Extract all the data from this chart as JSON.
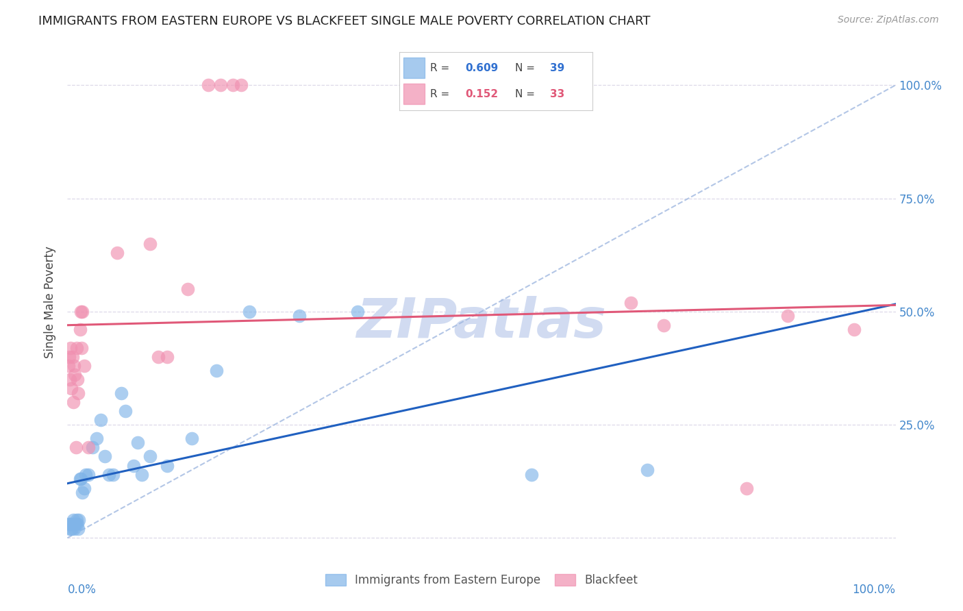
{
  "title": "IMMIGRANTS FROM EASTERN EUROPE VS BLACKFEET SINGLE MALE POVERTY CORRELATION CHART",
  "source": "Source: ZipAtlas.com",
  "ylabel": "Single Male Poverty",
  "bg_color": "#ffffff",
  "grid_color": "#ddd8e8",
  "watermark": "ZIPatlas",
  "watermark_color": "#ccd8f0",
  "blue_color": "#80b4e8",
  "pink_color": "#f090b0",
  "trend_blue": "#2060c0",
  "trend_pink": "#e05878",
  "trend_diagonal_color": "#a0b8e0",
  "blue_R": "0.609",
  "blue_N": "39",
  "pink_R": "0.152",
  "pink_N": "33",
  "blue_legend_color": "#80b4e8",
  "pink_legend_color": "#f090b0",
  "legend_R_color": "#333333",
  "legend_val_blue_color": "#3070d0",
  "legend_val_pink_color": "#e05878",
  "legend_N_color": "#333333",
  "legend_N_val_color": "#3070d0",
  "blue_x": [
    0.002,
    0.003,
    0.004,
    0.005,
    0.006,
    0.007,
    0.008,
    0.009,
    0.01,
    0.011,
    0.012,
    0.013,
    0.014,
    0.015,
    0.016,
    0.018,
    0.02,
    0.022,
    0.025,
    0.03,
    0.035,
    0.04,
    0.045,
    0.05,
    0.055,
    0.065,
    0.07,
    0.08,
    0.085,
    0.09,
    0.1,
    0.12,
    0.15,
    0.18,
    0.22,
    0.28,
    0.35,
    0.56,
    0.7
  ],
  "blue_y": [
    0.03,
    0.02,
    0.03,
    0.02,
    0.03,
    0.04,
    0.02,
    0.03,
    0.03,
    0.04,
    0.03,
    0.02,
    0.04,
    0.13,
    0.13,
    0.1,
    0.11,
    0.14,
    0.14,
    0.2,
    0.22,
    0.26,
    0.18,
    0.14,
    0.14,
    0.32,
    0.28,
    0.16,
    0.21,
    0.14,
    0.18,
    0.16,
    0.22,
    0.37,
    0.5,
    0.49,
    0.5,
    0.14,
    0.15
  ],
  "pink_x": [
    0.001,
    0.002,
    0.003,
    0.004,
    0.005,
    0.006,
    0.007,
    0.008,
    0.009,
    0.01,
    0.011,
    0.012,
    0.013,
    0.015,
    0.016,
    0.017,
    0.018,
    0.02,
    0.025,
    0.06,
    0.1,
    0.11,
    0.12,
    0.145,
    0.17,
    0.185,
    0.2,
    0.21,
    0.68,
    0.72,
    0.82,
    0.87,
    0.95
  ],
  "pink_y": [
    0.38,
    0.4,
    0.35,
    0.42,
    0.33,
    0.4,
    0.3,
    0.38,
    0.36,
    0.2,
    0.42,
    0.35,
    0.32,
    0.46,
    0.5,
    0.42,
    0.5,
    0.38,
    0.2,
    0.63,
    0.65,
    0.4,
    0.4,
    0.55,
    1.0,
    1.0,
    1.0,
    1.0,
    0.52,
    0.47,
    0.11,
    0.49,
    0.46
  ],
  "xlim": [
    0.0,
    1.0
  ],
  "ylim": [
    -0.04,
    1.08
  ],
  "yticks": [
    0.0,
    0.25,
    0.5,
    0.75,
    1.0
  ],
  "ytick_labels": [
    "",
    "25.0%",
    "50.0%",
    "75.0%",
    "100.0%"
  ],
  "right_ytick_color": "#4488cc",
  "legend_blue_label": "Immigrants from Eastern Europe",
  "legend_pink_label": "Blackfeet"
}
